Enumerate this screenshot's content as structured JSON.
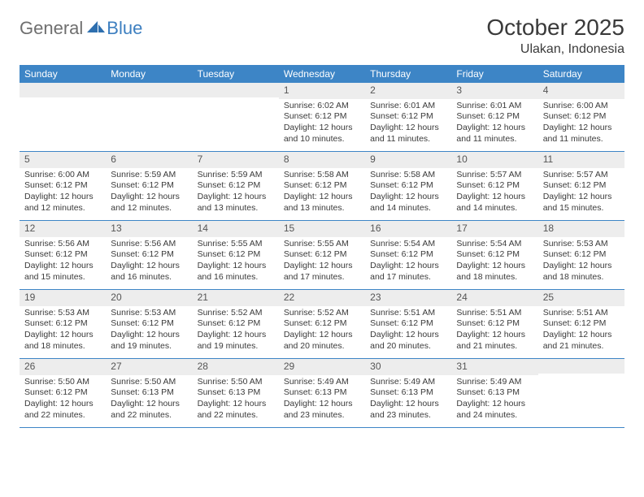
{
  "logo": {
    "text1": "General",
    "text2": "Blue"
  },
  "title": "October 2025",
  "location": "Ulakan, Indonesia",
  "colors": {
    "header_bg": "#3d85c6",
    "header_text": "#ffffff",
    "daynum_bg": "#ededed",
    "border": "#3d85c6",
    "logo_gray": "#6f6f6f",
    "logo_blue": "#3d7fc0"
  },
  "weekdays": [
    "Sunday",
    "Monday",
    "Tuesday",
    "Wednesday",
    "Thursday",
    "Friday",
    "Saturday"
  ],
  "weeks": [
    [
      {
        "n": "",
        "lines": []
      },
      {
        "n": "",
        "lines": []
      },
      {
        "n": "",
        "lines": []
      },
      {
        "n": "1",
        "lines": [
          "Sunrise: 6:02 AM",
          "Sunset: 6:12 PM",
          "Daylight: 12 hours",
          "and 10 minutes."
        ]
      },
      {
        "n": "2",
        "lines": [
          "Sunrise: 6:01 AM",
          "Sunset: 6:12 PM",
          "Daylight: 12 hours",
          "and 11 minutes."
        ]
      },
      {
        "n": "3",
        "lines": [
          "Sunrise: 6:01 AM",
          "Sunset: 6:12 PM",
          "Daylight: 12 hours",
          "and 11 minutes."
        ]
      },
      {
        "n": "4",
        "lines": [
          "Sunrise: 6:00 AM",
          "Sunset: 6:12 PM",
          "Daylight: 12 hours",
          "and 11 minutes."
        ]
      }
    ],
    [
      {
        "n": "5",
        "lines": [
          "Sunrise: 6:00 AM",
          "Sunset: 6:12 PM",
          "Daylight: 12 hours",
          "and 12 minutes."
        ]
      },
      {
        "n": "6",
        "lines": [
          "Sunrise: 5:59 AM",
          "Sunset: 6:12 PM",
          "Daylight: 12 hours",
          "and 12 minutes."
        ]
      },
      {
        "n": "7",
        "lines": [
          "Sunrise: 5:59 AM",
          "Sunset: 6:12 PM",
          "Daylight: 12 hours",
          "and 13 minutes."
        ]
      },
      {
        "n": "8",
        "lines": [
          "Sunrise: 5:58 AM",
          "Sunset: 6:12 PM",
          "Daylight: 12 hours",
          "and 13 minutes."
        ]
      },
      {
        "n": "9",
        "lines": [
          "Sunrise: 5:58 AM",
          "Sunset: 6:12 PM",
          "Daylight: 12 hours",
          "and 14 minutes."
        ]
      },
      {
        "n": "10",
        "lines": [
          "Sunrise: 5:57 AM",
          "Sunset: 6:12 PM",
          "Daylight: 12 hours",
          "and 14 minutes."
        ]
      },
      {
        "n": "11",
        "lines": [
          "Sunrise: 5:57 AM",
          "Sunset: 6:12 PM",
          "Daylight: 12 hours",
          "and 15 minutes."
        ]
      }
    ],
    [
      {
        "n": "12",
        "lines": [
          "Sunrise: 5:56 AM",
          "Sunset: 6:12 PM",
          "Daylight: 12 hours",
          "and 15 minutes."
        ]
      },
      {
        "n": "13",
        "lines": [
          "Sunrise: 5:56 AM",
          "Sunset: 6:12 PM",
          "Daylight: 12 hours",
          "and 16 minutes."
        ]
      },
      {
        "n": "14",
        "lines": [
          "Sunrise: 5:55 AM",
          "Sunset: 6:12 PM",
          "Daylight: 12 hours",
          "and 16 minutes."
        ]
      },
      {
        "n": "15",
        "lines": [
          "Sunrise: 5:55 AM",
          "Sunset: 6:12 PM",
          "Daylight: 12 hours",
          "and 17 minutes."
        ]
      },
      {
        "n": "16",
        "lines": [
          "Sunrise: 5:54 AM",
          "Sunset: 6:12 PM",
          "Daylight: 12 hours",
          "and 17 minutes."
        ]
      },
      {
        "n": "17",
        "lines": [
          "Sunrise: 5:54 AM",
          "Sunset: 6:12 PM",
          "Daylight: 12 hours",
          "and 18 minutes."
        ]
      },
      {
        "n": "18",
        "lines": [
          "Sunrise: 5:53 AM",
          "Sunset: 6:12 PM",
          "Daylight: 12 hours",
          "and 18 minutes."
        ]
      }
    ],
    [
      {
        "n": "19",
        "lines": [
          "Sunrise: 5:53 AM",
          "Sunset: 6:12 PM",
          "Daylight: 12 hours",
          "and 18 minutes."
        ]
      },
      {
        "n": "20",
        "lines": [
          "Sunrise: 5:53 AM",
          "Sunset: 6:12 PM",
          "Daylight: 12 hours",
          "and 19 minutes."
        ]
      },
      {
        "n": "21",
        "lines": [
          "Sunrise: 5:52 AM",
          "Sunset: 6:12 PM",
          "Daylight: 12 hours",
          "and 19 minutes."
        ]
      },
      {
        "n": "22",
        "lines": [
          "Sunrise: 5:52 AM",
          "Sunset: 6:12 PM",
          "Daylight: 12 hours",
          "and 20 minutes."
        ]
      },
      {
        "n": "23",
        "lines": [
          "Sunrise: 5:51 AM",
          "Sunset: 6:12 PM",
          "Daylight: 12 hours",
          "and 20 minutes."
        ]
      },
      {
        "n": "24",
        "lines": [
          "Sunrise: 5:51 AM",
          "Sunset: 6:12 PM",
          "Daylight: 12 hours",
          "and 21 minutes."
        ]
      },
      {
        "n": "25",
        "lines": [
          "Sunrise: 5:51 AM",
          "Sunset: 6:12 PM",
          "Daylight: 12 hours",
          "and 21 minutes."
        ]
      }
    ],
    [
      {
        "n": "26",
        "lines": [
          "Sunrise: 5:50 AM",
          "Sunset: 6:12 PM",
          "Daylight: 12 hours",
          "and 22 minutes."
        ]
      },
      {
        "n": "27",
        "lines": [
          "Sunrise: 5:50 AM",
          "Sunset: 6:13 PM",
          "Daylight: 12 hours",
          "and 22 minutes."
        ]
      },
      {
        "n": "28",
        "lines": [
          "Sunrise: 5:50 AM",
          "Sunset: 6:13 PM",
          "Daylight: 12 hours",
          "and 22 minutes."
        ]
      },
      {
        "n": "29",
        "lines": [
          "Sunrise: 5:49 AM",
          "Sunset: 6:13 PM",
          "Daylight: 12 hours",
          "and 23 minutes."
        ]
      },
      {
        "n": "30",
        "lines": [
          "Sunrise: 5:49 AM",
          "Sunset: 6:13 PM",
          "Daylight: 12 hours",
          "and 23 minutes."
        ]
      },
      {
        "n": "31",
        "lines": [
          "Sunrise: 5:49 AM",
          "Sunset: 6:13 PM",
          "Daylight: 12 hours",
          "and 24 minutes."
        ]
      },
      {
        "n": "",
        "lines": []
      }
    ]
  ]
}
